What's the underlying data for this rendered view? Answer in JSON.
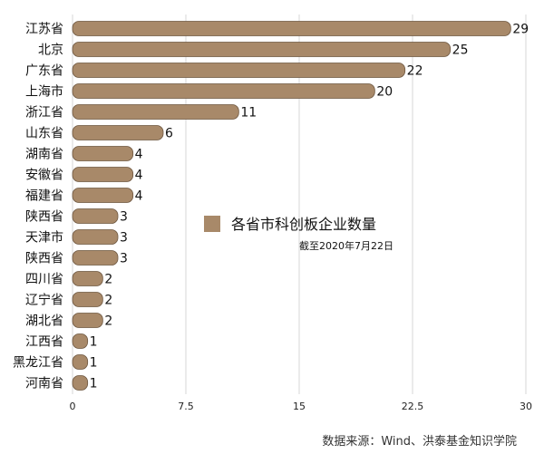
{
  "chart_data": {
    "type": "bar",
    "orientation": "horizontal",
    "categories": [
      "江苏省",
      "北京",
      "广东省",
      "上海市",
      "浙江省",
      "山东省",
      "湖南省",
      "安徽省",
      "福建省",
      "陕西省",
      "天津市",
      "陕西省",
      "四川省",
      "辽宁省",
      "湖北省",
      "江西省",
      "黑龙江省",
      "河南省"
    ],
    "values": [
      29,
      25,
      22,
      20,
      11,
      6,
      4,
      4,
      4,
      3,
      3,
      3,
      2,
      2,
      2,
      1,
      1,
      1
    ],
    "xlim": [
      0,
      30
    ],
    "xticks": [
      "0",
      "7.5",
      "15",
      "22.5",
      "30"
    ],
    "grid": true,
    "legend": {
      "label": "各省市科创板企业数量",
      "placement": "center",
      "color": "#a88969"
    },
    "annotation": "截至2020年7月22日",
    "source": "数据来源：Wind、洪泰基金知识学院"
  }
}
